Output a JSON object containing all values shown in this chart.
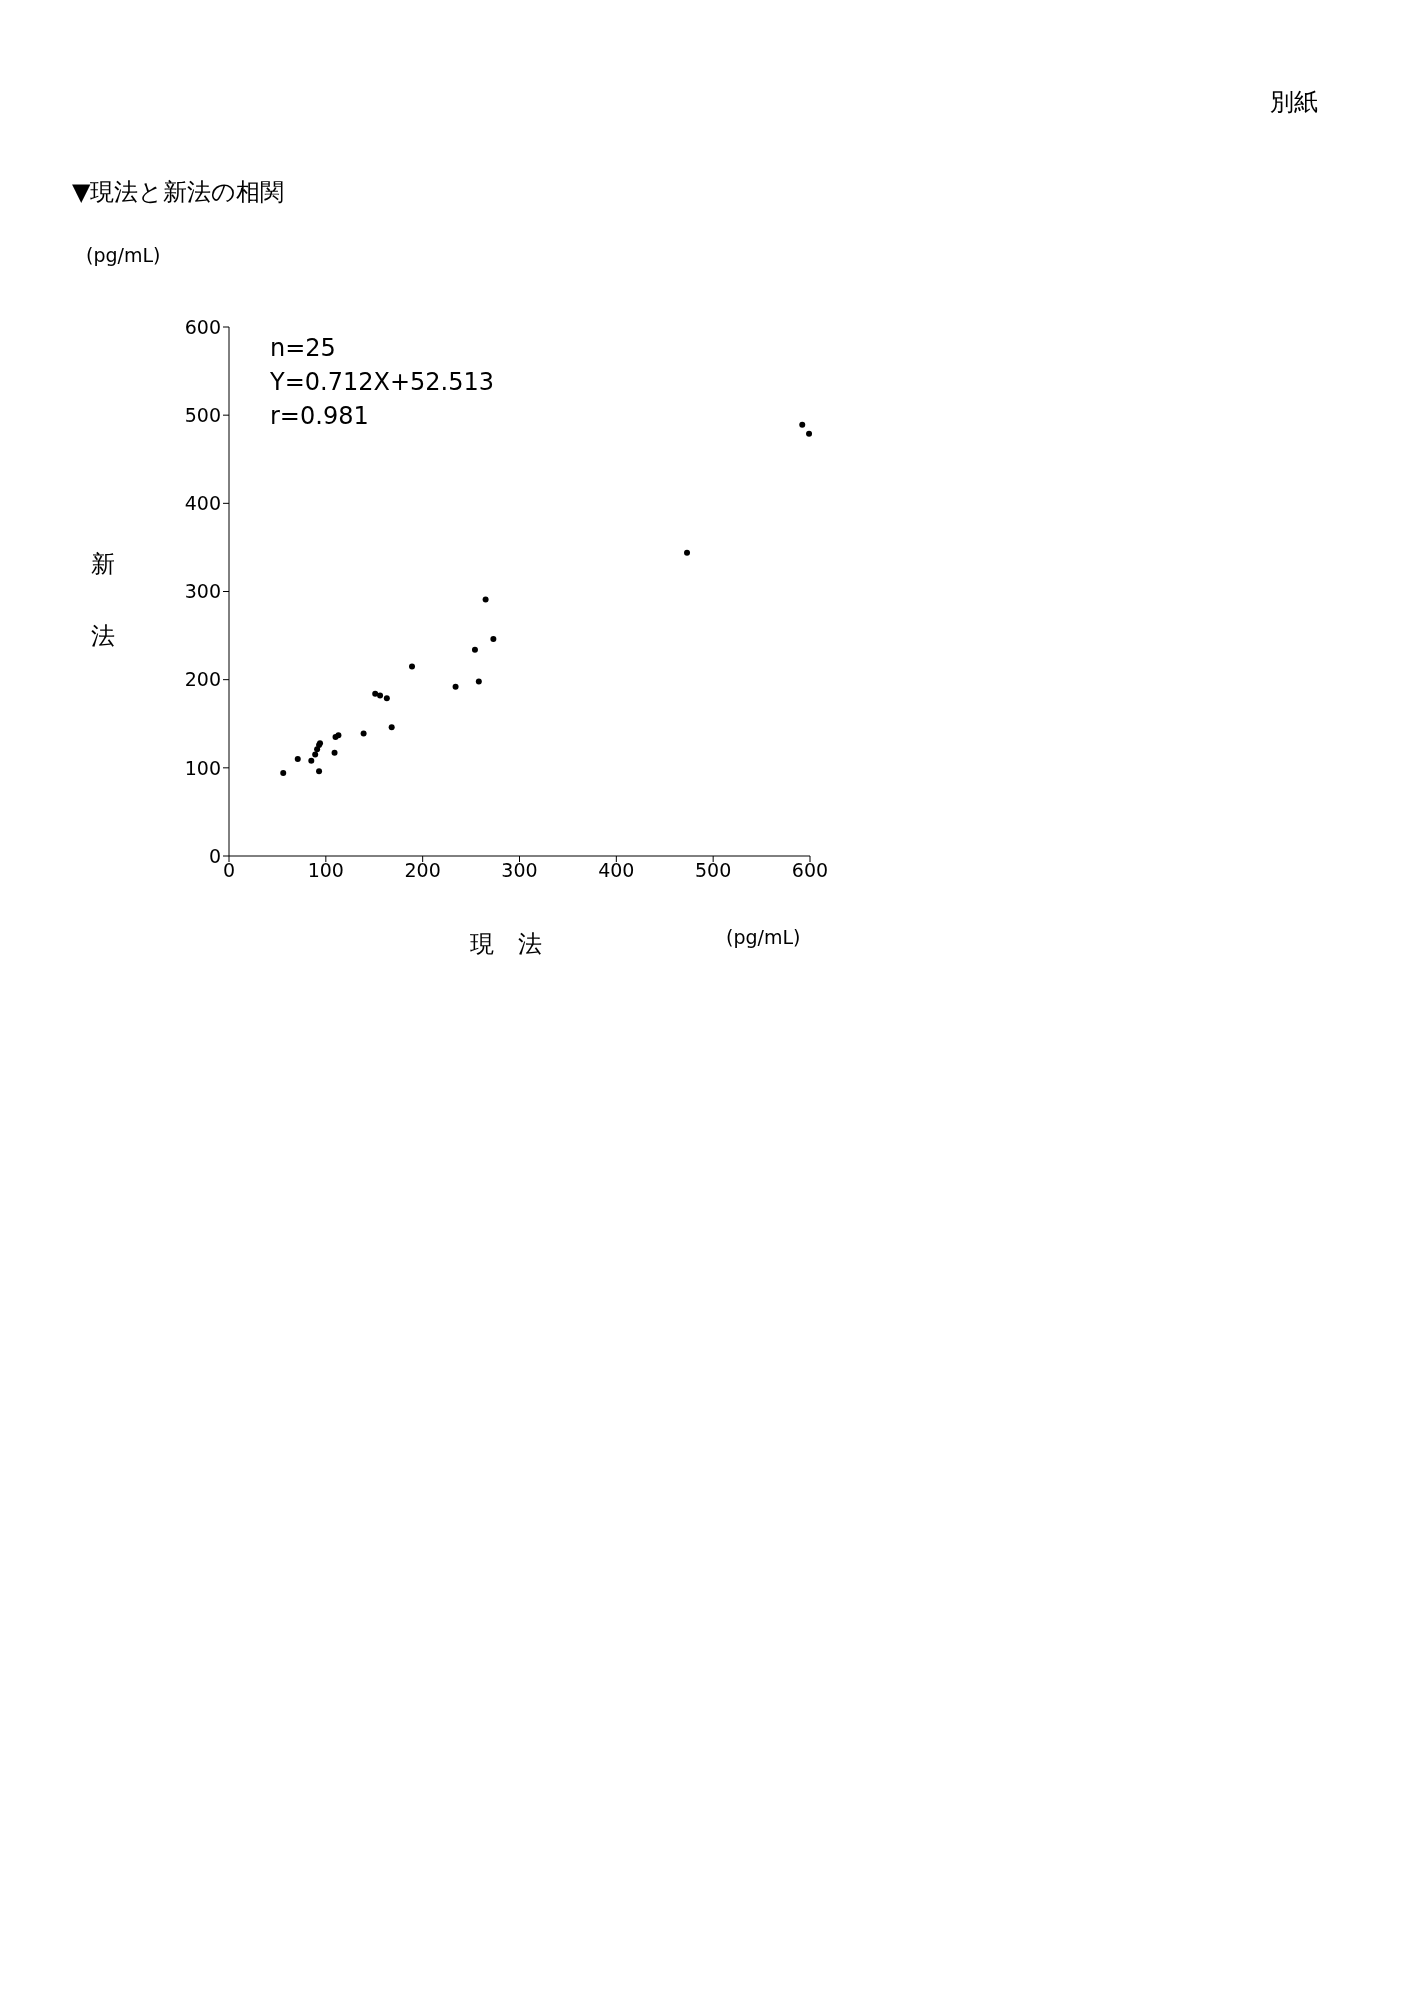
{
  "chart_data": {
    "type": "scatter",
    "title": "▼現法と新法の相関",
    "xlabel": "現　法",
    "ylabel": "新法",
    "annotations": [
      "別紙",
      "(pg/mL)",
      "(pg/mL)",
      "n=25",
      "Y=0.712X+52.513",
      "r=0.981"
    ],
    "x": [
      56,
      71,
      85,
      89,
      91,
      93,
      94,
      93,
      109,
      110,
      113,
      139,
      151,
      156,
      163,
      168,
      189,
      234,
      254,
      258,
      265,
      273,
      473,
      592,
      599
    ],
    "series": [
      {
        "color": "#000000",
        "values": [
          94,
          110,
          108,
          115,
          121,
          126,
          128,
          96,
          117,
          135,
          137,
          139,
          184,
          182,
          179,
          146,
          215,
          192,
          234,
          198,
          291,
          246,
          344,
          489,
          479
        ]
      }
    ],
    "xlim": [
      0,
      600
    ],
    "ylim": [
      0,
      600
    ],
    "xticks": [
      0,
      100,
      200,
      300,
      400,
      500,
      600
    ],
    "yticks": [
      0,
      100,
      200,
      300,
      400,
      500,
      600
    ],
    "marker": "circle",
    "grid": false,
    "legend": false
  }
}
